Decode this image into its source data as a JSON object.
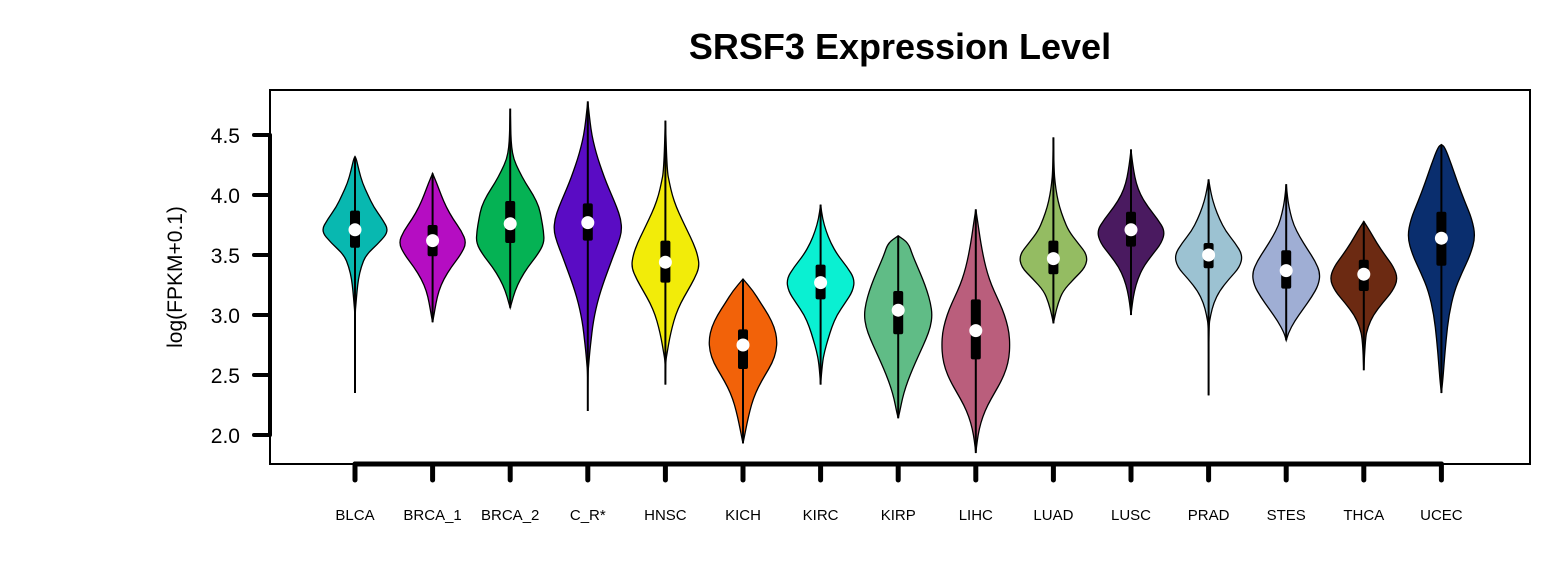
{
  "chart_data": {
    "type": "violin",
    "title": "SRSF3 Expression Level",
    "xlabel": "",
    "ylabel": "log(FPKM+0.1)",
    "ylim": [
      1.75,
      4.85
    ],
    "yticks": [
      2.0,
      2.5,
      3.0,
      3.5,
      4.0,
      4.5
    ],
    "ytick_labels": [
      "2.0",
      "2.5",
      "3.0",
      "3.5",
      "4.0",
      "4.5"
    ],
    "grid": false,
    "legend": "none",
    "categories": [
      "BLCA",
      "BRCA_1",
      "BRCA_2",
      "C_R*",
      "HNSC",
      "KICH",
      "KIRC",
      "KIRP",
      "LIHC",
      "LUAD",
      "LUSC",
      "PRAD",
      "STES",
      "THCA",
      "UCEC"
    ],
    "series": [
      {
        "category": "BLCA",
        "color": "#08B8B0",
        "min": 2.35,
        "q1": 3.56,
        "median": 3.71,
        "q3": 3.87,
        "max": 4.32,
        "profile": [
          [
            2.35,
            0
          ],
          [
            3.0,
            0
          ],
          [
            3.1,
            0.03
          ],
          [
            3.2,
            0.06
          ],
          [
            3.3,
            0.1
          ],
          [
            3.4,
            0.18
          ],
          [
            3.5,
            0.32
          ],
          [
            3.6,
            0.7
          ],
          [
            3.7,
            1.0
          ],
          [
            3.8,
            0.8
          ],
          [
            3.9,
            0.55
          ],
          [
            4.0,
            0.38
          ],
          [
            4.1,
            0.22
          ],
          [
            4.2,
            0.12
          ],
          [
            4.3,
            0.04
          ],
          [
            4.32,
            0
          ]
        ]
      },
      {
        "category": "BRCA_1",
        "color": "#B50DC2",
        "min": 2.94,
        "q1": 3.49,
        "median": 3.62,
        "q3": 3.75,
        "max": 4.18,
        "profile": [
          [
            2.94,
            0
          ],
          [
            3.0,
            0.04
          ],
          [
            3.1,
            0.1
          ],
          [
            3.2,
            0.18
          ],
          [
            3.3,
            0.33
          ],
          [
            3.4,
            0.55
          ],
          [
            3.5,
            0.82
          ],
          [
            3.6,
            1.0
          ],
          [
            3.7,
            0.85
          ],
          [
            3.8,
            0.6
          ],
          [
            3.9,
            0.4
          ],
          [
            4.0,
            0.25
          ],
          [
            4.1,
            0.12
          ],
          [
            4.18,
            0
          ]
        ]
      },
      {
        "category": "BRCA_2",
        "color": "#05B254",
        "min": 3.06,
        "q1": 3.6,
        "median": 3.76,
        "q3": 3.95,
        "max": 4.72,
        "profile": [
          [
            3.06,
            0
          ],
          [
            3.1,
            0.04
          ],
          [
            3.2,
            0.14
          ],
          [
            3.3,
            0.3
          ],
          [
            3.4,
            0.52
          ],
          [
            3.5,
            0.8
          ],
          [
            3.6,
            1.0
          ],
          [
            3.7,
            0.98
          ],
          [
            3.8,
            0.92
          ],
          [
            3.9,
            0.85
          ],
          [
            4.0,
            0.68
          ],
          [
            4.1,
            0.45
          ],
          [
            4.2,
            0.26
          ],
          [
            4.3,
            0.1
          ],
          [
            4.4,
            0.04
          ],
          [
            4.5,
            0.02
          ],
          [
            4.6,
            0.01
          ],
          [
            4.72,
            0
          ]
        ]
      },
      {
        "category": "C_R*",
        "color": "#5A0CC4",
        "min": 2.2,
        "q1": 3.62,
        "median": 3.77,
        "q3": 3.93,
        "max": 4.78,
        "profile": [
          [
            2.2,
            0
          ],
          [
            2.5,
            0
          ],
          [
            2.6,
            0.03
          ],
          [
            2.7,
            0.06
          ],
          [
            2.8,
            0.1
          ],
          [
            2.9,
            0.14
          ],
          [
            3.0,
            0.2
          ],
          [
            3.1,
            0.28
          ],
          [
            3.2,
            0.38
          ],
          [
            3.3,
            0.5
          ],
          [
            3.4,
            0.63
          ],
          [
            3.5,
            0.76
          ],
          [
            3.6,
            0.9
          ],
          [
            3.7,
            1.0
          ],
          [
            3.8,
            0.97
          ],
          [
            3.9,
            0.85
          ],
          [
            4.0,
            0.7
          ],
          [
            4.1,
            0.55
          ],
          [
            4.2,
            0.42
          ],
          [
            4.3,
            0.3
          ],
          [
            4.4,
            0.2
          ],
          [
            4.5,
            0.12
          ],
          [
            4.6,
            0.07
          ],
          [
            4.7,
            0.03
          ],
          [
            4.78,
            0
          ]
        ]
      },
      {
        "category": "HNSC",
        "color": "#F2EC09",
        "min": 2.42,
        "q1": 3.27,
        "median": 3.44,
        "q3": 3.62,
        "max": 4.62,
        "profile": [
          [
            2.42,
            0
          ],
          [
            2.6,
            0
          ],
          [
            2.7,
            0.06
          ],
          [
            2.8,
            0.12
          ],
          [
            2.9,
            0.2
          ],
          [
            3.0,
            0.3
          ],
          [
            3.1,
            0.45
          ],
          [
            3.2,
            0.65
          ],
          [
            3.3,
            0.85
          ],
          [
            3.4,
            1.0
          ],
          [
            3.5,
            0.95
          ],
          [
            3.6,
            0.82
          ],
          [
            3.7,
            0.65
          ],
          [
            3.8,
            0.48
          ],
          [
            3.9,
            0.32
          ],
          [
            4.0,
            0.2
          ],
          [
            4.1,
            0.12
          ],
          [
            4.2,
            0.05
          ],
          [
            4.62,
            0
          ]
        ]
      },
      {
        "category": "KICH",
        "color": "#F26209",
        "min": 1.93,
        "q1": 2.55,
        "median": 2.75,
        "q3": 2.88,
        "max": 3.3,
        "profile": [
          [
            1.93,
            0
          ],
          [
            2.0,
            0.05
          ],
          [
            2.1,
            0.12
          ],
          [
            2.2,
            0.2
          ],
          [
            2.3,
            0.3
          ],
          [
            2.4,
            0.45
          ],
          [
            2.5,
            0.65
          ],
          [
            2.6,
            0.86
          ],
          [
            2.7,
            0.98
          ],
          [
            2.8,
            1.0
          ],
          [
            2.9,
            0.92
          ],
          [
            3.0,
            0.75
          ],
          [
            3.1,
            0.52
          ],
          [
            3.2,
            0.3
          ],
          [
            3.3,
            0
          ]
        ]
      },
      {
        "category": "KIRC",
        "color": "#0AF0D2",
        "min": 2.42,
        "q1": 3.13,
        "median": 3.27,
        "q3": 3.42,
        "max": 3.92,
        "profile": [
          [
            2.42,
            0
          ],
          [
            2.6,
            0.05
          ],
          [
            2.7,
            0.12
          ],
          [
            2.8,
            0.22
          ],
          [
            2.9,
            0.33
          ],
          [
            3.0,
            0.48
          ],
          [
            3.1,
            0.72
          ],
          [
            3.2,
            0.95
          ],
          [
            3.3,
            1.0
          ],
          [
            3.4,
            0.78
          ],
          [
            3.5,
            0.5
          ],
          [
            3.6,
            0.3
          ],
          [
            3.7,
            0.16
          ],
          [
            3.8,
            0.06
          ],
          [
            3.92,
            0
          ]
        ]
      },
      {
        "category": "KIRP",
        "color": "#60BC86",
        "min": 2.14,
        "q1": 2.84,
        "median": 3.04,
        "q3": 3.2,
        "max": 3.66,
        "profile": [
          [
            2.14,
            0
          ],
          [
            2.2,
            0.05
          ],
          [
            2.3,
            0.12
          ],
          [
            2.4,
            0.22
          ],
          [
            2.5,
            0.35
          ],
          [
            2.6,
            0.5
          ],
          [
            2.7,
            0.66
          ],
          [
            2.8,
            0.82
          ],
          [
            2.9,
            0.95
          ],
          [
            3.0,
            1.0
          ],
          [
            3.1,
            0.95
          ],
          [
            3.2,
            0.85
          ],
          [
            3.3,
            0.72
          ],
          [
            3.4,
            0.57
          ],
          [
            3.5,
            0.42
          ],
          [
            3.6,
            0.3
          ],
          [
            3.66,
            0
          ]
        ]
      },
      {
        "category": "LIHC",
        "color": "#BA5E7C",
        "min": 1.85,
        "q1": 2.63,
        "median": 2.87,
        "q3": 3.13,
        "max": 3.88,
        "profile": [
          [
            1.85,
            0
          ],
          [
            1.95,
            0.04
          ],
          [
            2.05,
            0.1
          ],
          [
            2.15,
            0.2
          ],
          [
            2.25,
            0.35
          ],
          [
            2.35,
            0.55
          ],
          [
            2.45,
            0.75
          ],
          [
            2.55,
            0.9
          ],
          [
            2.65,
            0.98
          ],
          [
            2.75,
            1.0
          ],
          [
            2.85,
            0.98
          ],
          [
            2.95,
            0.9
          ],
          [
            3.05,
            0.78
          ],
          [
            3.15,
            0.62
          ],
          [
            3.25,
            0.46
          ],
          [
            3.35,
            0.34
          ],
          [
            3.45,
            0.25
          ],
          [
            3.55,
            0.18
          ],
          [
            3.65,
            0.12
          ],
          [
            3.75,
            0.07
          ],
          [
            3.88,
            0
          ]
        ]
      },
      {
        "category": "LUAD",
        "color": "#94BC62",
        "min": 2.93,
        "q1": 3.34,
        "median": 3.47,
        "q3": 3.62,
        "max": 4.48,
        "profile": [
          [
            2.93,
            0
          ],
          [
            3.0,
            0.05
          ],
          [
            3.1,
            0.14
          ],
          [
            3.2,
            0.28
          ],
          [
            3.3,
            0.6
          ],
          [
            3.4,
            0.95
          ],
          [
            3.5,
            1.0
          ],
          [
            3.6,
            0.72
          ],
          [
            3.7,
            0.45
          ],
          [
            3.8,
            0.3
          ],
          [
            3.9,
            0.18
          ],
          [
            4.0,
            0.1
          ],
          [
            4.1,
            0.05
          ],
          [
            4.2,
            0.02
          ],
          [
            4.48,
            0
          ]
        ]
      },
      {
        "category": "LUSC",
        "color": "#4A1A60",
        "min": 3.0,
        "q1": 3.57,
        "median": 3.71,
        "q3": 3.86,
        "max": 4.38,
        "profile": [
          [
            3.0,
            0
          ],
          [
            3.1,
            0.04
          ],
          [
            3.2,
            0.1
          ],
          [
            3.3,
            0.2
          ],
          [
            3.4,
            0.36
          ],
          [
            3.5,
            0.62
          ],
          [
            3.6,
            0.9
          ],
          [
            3.7,
            1.0
          ],
          [
            3.8,
            0.78
          ],
          [
            3.9,
            0.5
          ],
          [
            4.0,
            0.28
          ],
          [
            4.1,
            0.15
          ],
          [
            4.2,
            0.08
          ],
          [
            4.3,
            0.03
          ],
          [
            4.38,
            0
          ]
        ]
      },
      {
        "category": "PRAD",
        "color": "#9CC2D2",
        "min": 2.33,
        "q1": 3.39,
        "median": 3.5,
        "q3": 3.6,
        "max": 4.13,
        "profile": [
          [
            2.33,
            0
          ],
          [
            2.9,
            0
          ],
          [
            3.0,
            0.06
          ],
          [
            3.1,
            0.15
          ],
          [
            3.2,
            0.32
          ],
          [
            3.3,
            0.6
          ],
          [
            3.4,
            0.92
          ],
          [
            3.5,
            1.0
          ],
          [
            3.6,
            0.78
          ],
          [
            3.7,
            0.5
          ],
          [
            3.8,
            0.32
          ],
          [
            3.9,
            0.18
          ],
          [
            4.0,
            0.08
          ],
          [
            4.13,
            0
          ]
        ]
      },
      {
        "category": "STES",
        "color": "#9FAED4",
        "min": 2.79,
        "q1": 3.22,
        "median": 3.37,
        "q3": 3.54,
        "max": 4.09,
        "profile": [
          [
            2.79,
            0
          ],
          [
            2.85,
            0.06
          ],
          [
            2.95,
            0.25
          ],
          [
            3.05,
            0.5
          ],
          [
            3.15,
            0.75
          ],
          [
            3.25,
            0.95
          ],
          [
            3.35,
            1.0
          ],
          [
            3.45,
            0.85
          ],
          [
            3.55,
            0.62
          ],
          [
            3.65,
            0.4
          ],
          [
            3.75,
            0.22
          ],
          [
            3.85,
            0.12
          ],
          [
            3.95,
            0.05
          ],
          [
            4.09,
            0
          ]
        ]
      },
      {
        "category": "THCA",
        "color": "#6C2A12",
        "min": 2.54,
        "q1": 3.2,
        "median": 3.34,
        "q3": 3.46,
        "max": 3.78,
        "profile": [
          [
            2.54,
            0
          ],
          [
            2.8,
            0.04
          ],
          [
            2.9,
            0.12
          ],
          [
            3.0,
            0.28
          ],
          [
            3.1,
            0.55
          ],
          [
            3.2,
            0.85
          ],
          [
            3.3,
            1.0
          ],
          [
            3.4,
            0.88
          ],
          [
            3.5,
            0.62
          ],
          [
            3.6,
            0.38
          ],
          [
            3.7,
            0.18
          ],
          [
            3.78,
            0
          ]
        ]
      },
      {
        "category": "UCEC",
        "color": "#0A2E6E",
        "min": 2.35,
        "q1": 3.41,
        "median": 3.64,
        "q3": 3.86,
        "max": 4.42,
        "profile": [
          [
            2.35,
            0
          ],
          [
            2.45,
            0.04
          ],
          [
            2.6,
            0.08
          ],
          [
            2.8,
            0.14
          ],
          [
            3.0,
            0.22
          ],
          [
            3.2,
            0.38
          ],
          [
            3.35,
            0.6
          ],
          [
            3.5,
            0.85
          ],
          [
            3.65,
            1.0
          ],
          [
            3.8,
            0.9
          ],
          [
            3.95,
            0.68
          ],
          [
            4.1,
            0.48
          ],
          [
            4.25,
            0.3
          ],
          [
            4.4,
            0.1
          ],
          [
            4.42,
            0
          ]
        ]
      }
    ]
  }
}
